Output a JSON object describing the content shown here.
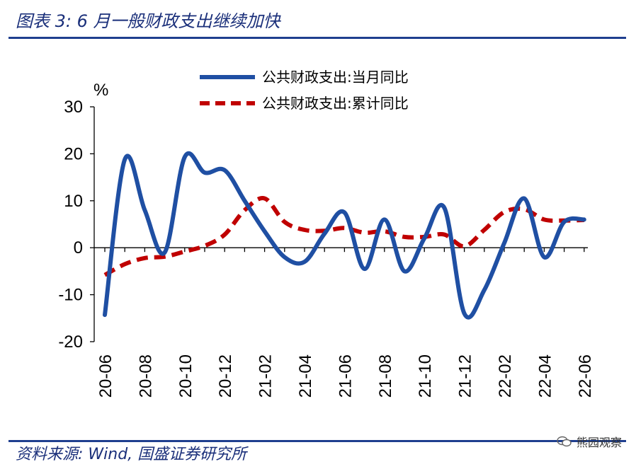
{
  "title": "图表 3:  6 月一般财政支出继续加快",
  "source": "资料来源:  Wind, 国盛证券研究所",
  "watermark": "熊园观察",
  "chart_data": {
    "type": "line",
    "ylabel": "%",
    "ylim": [
      -20,
      30
    ],
    "yticks": [
      -20,
      -10,
      0,
      10,
      20,
      30
    ],
    "x_tick_labels": [
      "20-06",
      "20-08",
      "20-10",
      "20-12",
      "21-02",
      "21-04",
      "21-06",
      "21-08",
      "21-10",
      "21-12",
      "22-02",
      "22-04",
      "22-06"
    ],
    "x": [
      "20-06",
      "20-07",
      "20-08",
      "20-09",
      "20-10",
      "20-11",
      "20-12",
      "21-01",
      "21-02",
      "21-03",
      "21-04",
      "21-05",
      "21-06",
      "21-07",
      "21-08",
      "21-09",
      "21-10",
      "21-11",
      "21-12",
      "22-01",
      "22-02",
      "22-03",
      "22-04",
      "22-05",
      "22-06"
    ],
    "series": [
      {
        "name": "公共财政支出:当月同比",
        "color": "#1f4fa3",
        "style": "solid",
        "values": [
          -14.3,
          18.8,
          8.0,
          -1.0,
          19.3,
          16.0,
          16.5,
          10.0,
          3.5,
          -2.0,
          -3.0,
          3.0,
          7.5,
          -4.5,
          6.0,
          -5.0,
          2.0,
          8.5,
          -14.0,
          -9.0,
          1.0,
          10.5,
          -2.0,
          5.5,
          6.0
        ]
      },
      {
        "name": "公共财政支出:累计同比",
        "color": "#c00000",
        "style": "dashed",
        "values": [
          -5.8,
          -3.5,
          -2.2,
          -1.9,
          -0.8,
          0.4,
          2.8,
          8.0,
          10.5,
          5.5,
          3.8,
          3.6,
          4.2,
          3.2,
          3.5,
          2.3,
          2.3,
          2.8,
          0.3,
          3.8,
          7.6,
          8.2,
          6.0,
          5.8,
          5.9
        ]
      }
    ]
  }
}
